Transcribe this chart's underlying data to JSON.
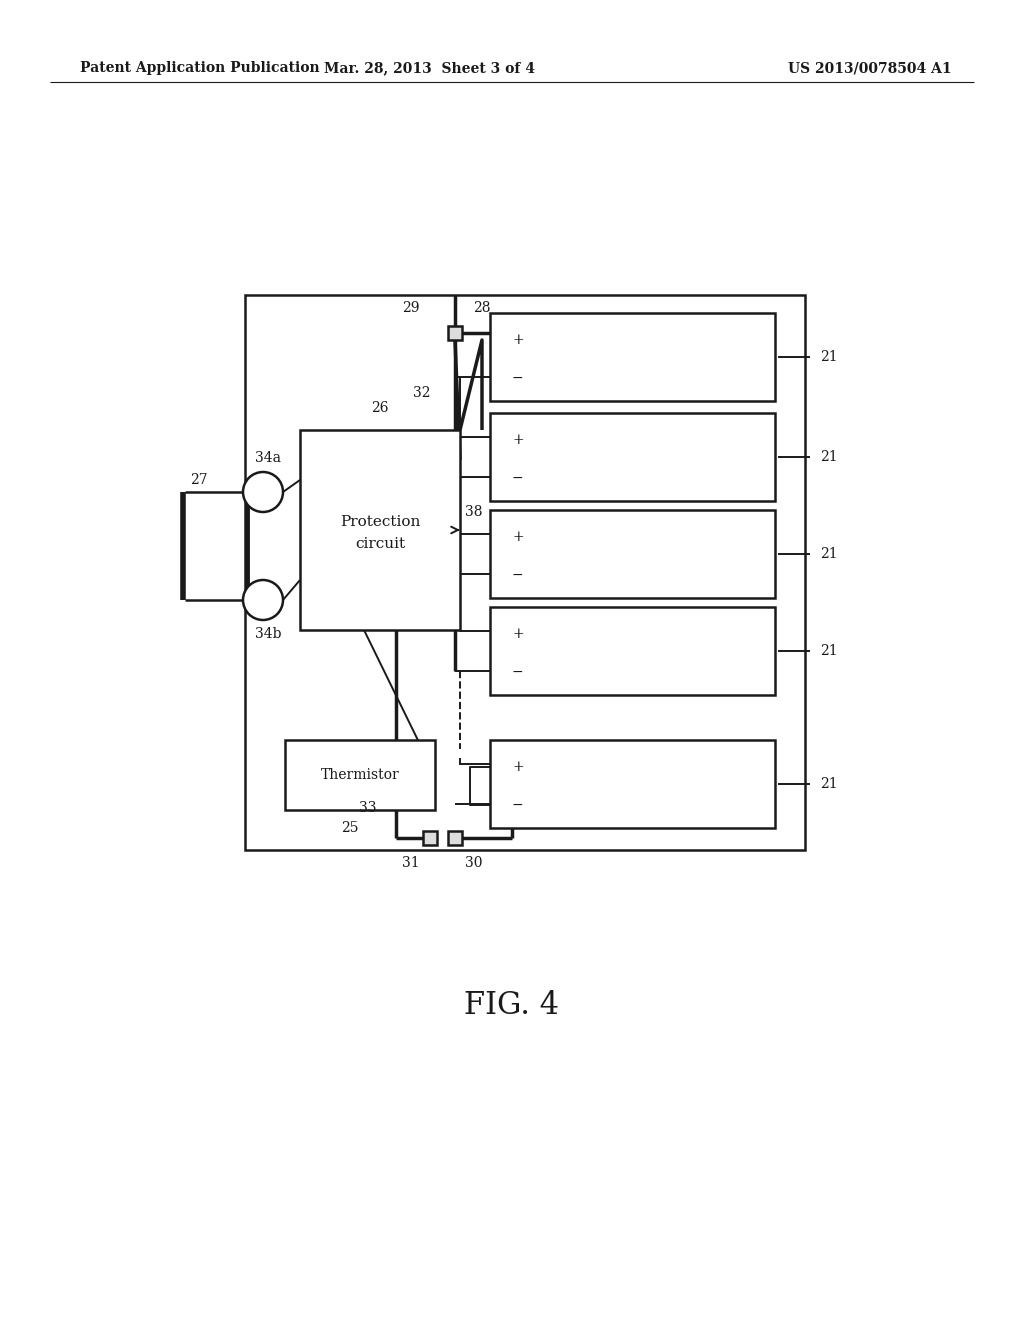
{
  "bg_color": "#ffffff",
  "header_left": "Patent Application Publication",
  "header_center": "Mar. 28, 2013  Sheet 3 of 4",
  "header_right": "US 2013/0078504 A1",
  "figure_label": "FIG. 4",
  "label_fontsize": 10,
  "header_fontsize": 10,
  "fig_label_fontsize": 22
}
